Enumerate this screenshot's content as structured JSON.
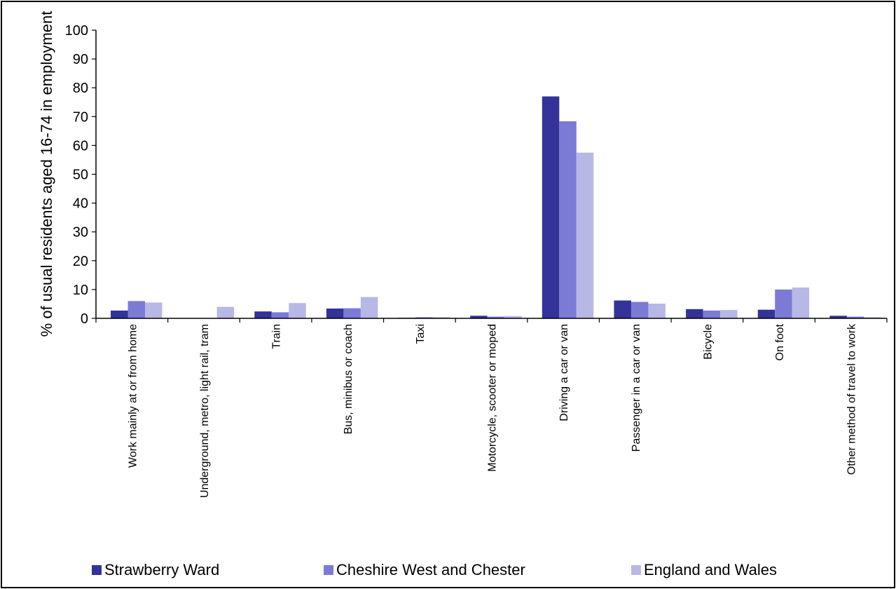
{
  "chart_data": {
    "type": "bar",
    "title": "",
    "xlabel": "",
    "ylabel": "% of usual residents aged 16-74 in employment",
    "ylim": [
      0,
      100
    ],
    "yticks": [
      0,
      10,
      20,
      30,
      40,
      50,
      60,
      70,
      80,
      90,
      100
    ],
    "grid": false,
    "legend_position": "bottom",
    "categories": [
      "Work mainly at or from home",
      "Underground, metro, light rail, tram",
      "Train",
      "Bus, minibus or coach",
      "Taxi",
      "Motorcycle, scooter or moped",
      "Driving a car or van",
      "Passenger in a car or van",
      "Bicycle",
      "On foot",
      "Other method of travel to work"
    ],
    "series": [
      {
        "name": "Strawberry Ward",
        "color": "#333399",
        "values": [
          2.7,
          0.0,
          2.4,
          3.4,
          0.2,
          0.9,
          77.0,
          6.2,
          3.2,
          3.0,
          0.9
        ]
      },
      {
        "name": "Cheshire West and Chester",
        "color": "#7b7bd6",
        "values": [
          6.0,
          0.1,
          2.1,
          3.5,
          0.4,
          0.6,
          68.4,
          5.7,
          2.7,
          10.0,
          0.6
        ]
      },
      {
        "name": "England and Wales",
        "color": "#b8b8e6",
        "values": [
          5.5,
          4.0,
          5.3,
          7.4,
          0.4,
          0.8,
          57.5,
          5.1,
          2.9,
          10.7,
          0.4
        ]
      }
    ]
  }
}
